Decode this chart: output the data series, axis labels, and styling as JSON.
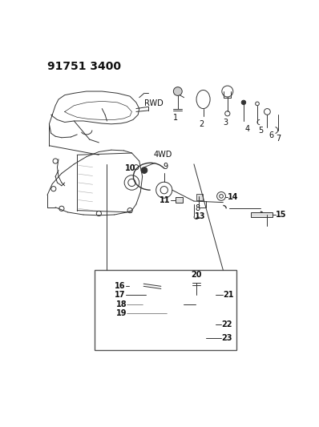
{
  "title": "91751 3400",
  "bg_color": "#ffffff",
  "title_fontsize": 10,
  "label_fontsize": 7,
  "rwd_label": "RWD",
  "fwd_label": "4WD",
  "line_color": "#333333",
  "dark": "#111111"
}
